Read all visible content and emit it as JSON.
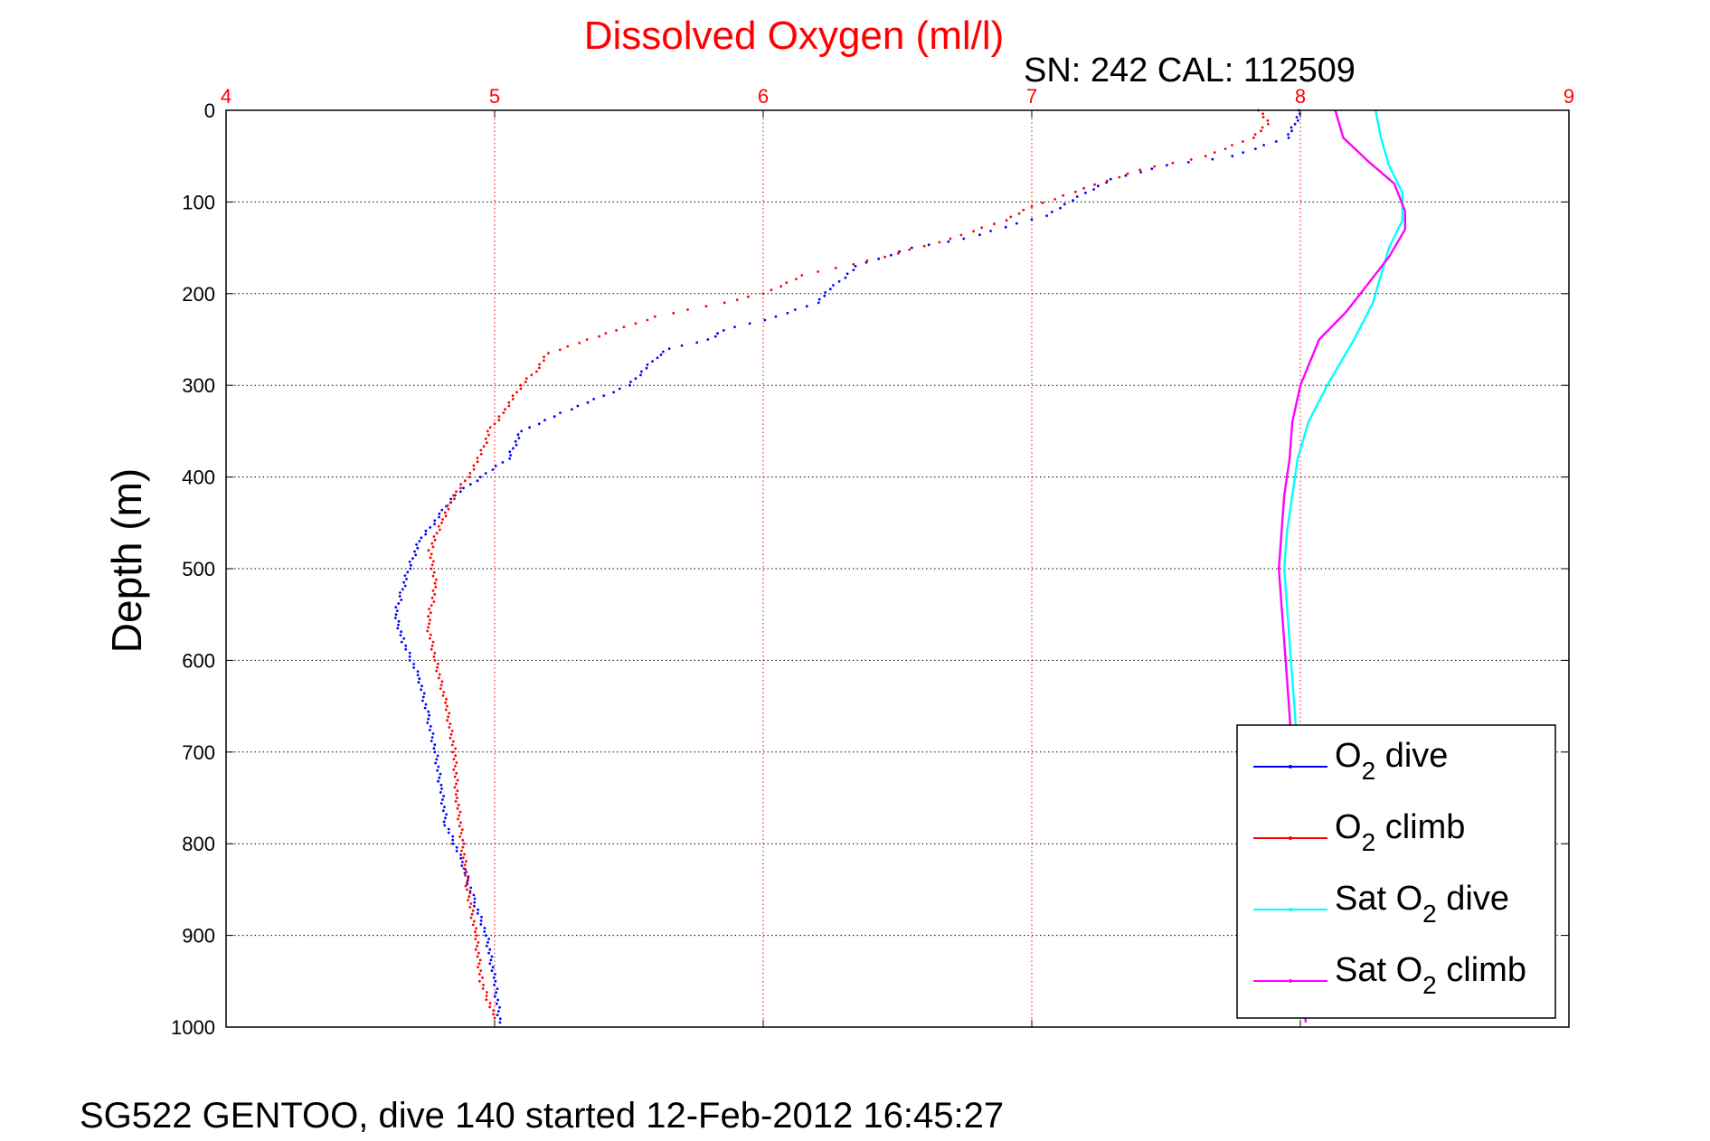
{
  "chart_data": {
    "type": "line",
    "title": "Dissolved Oxygen (ml/l)",
    "subtitle": "SN: 242  CAL: 112509",
    "ylabel": "Depth (m)",
    "xlabel": "",
    "xlim": [
      4,
      9
    ],
    "ylim": [
      0,
      1000
    ],
    "y_reversed": true,
    "x_axis_position": "top",
    "x_ticks": [
      "4",
      "5",
      "6",
      "7",
      "8",
      "9"
    ],
    "y_ticks": [
      "0",
      "100",
      "200",
      "300",
      "400",
      "500",
      "600",
      "700",
      "800",
      "900",
      "1000"
    ],
    "grid": true,
    "legend_position": "bottom-right",
    "colors": {
      "title": "#ff0000",
      "x_ticks": "#ff0000",
      "grid_x": "#ff0000",
      "grid_y": "#000000"
    },
    "series": [
      {
        "legend": {
          "main": "O",
          "sub": "2",
          "rest": " dive"
        },
        "color": "#0000ff",
        "style": "dots",
        "points": [
          [
            8.0,
            0
          ],
          [
            7.98,
            15
          ],
          [
            7.95,
            30
          ],
          [
            7.75,
            50
          ],
          [
            7.5,
            60
          ],
          [
            7.3,
            75
          ],
          [
            7.2,
            90
          ],
          [
            7.05,
            115
          ],
          [
            6.75,
            140
          ],
          [
            6.55,
            150
          ],
          [
            6.35,
            170
          ],
          [
            6.25,
            195
          ],
          [
            6.2,
            210
          ],
          [
            6.05,
            225
          ],
          [
            5.85,
            240
          ],
          [
            5.8,
            250
          ],
          [
            5.65,
            260
          ],
          [
            5.6,
            270
          ],
          [
            5.55,
            285
          ],
          [
            5.5,
            300
          ],
          [
            5.25,
            330
          ],
          [
            5.1,
            350
          ],
          [
            5.05,
            380
          ],
          [
            4.95,
            400
          ],
          [
            4.85,
            420
          ],
          [
            4.8,
            440
          ],
          [
            4.72,
            470
          ],
          [
            4.68,
            500
          ],
          [
            4.65,
            530
          ],
          [
            4.63,
            550
          ],
          [
            4.66,
            580
          ],
          [
            4.72,
            620
          ],
          [
            4.75,
            660
          ],
          [
            4.78,
            700
          ],
          [
            4.8,
            740
          ],
          [
            4.82,
            780
          ],
          [
            4.88,
            820
          ],
          [
            4.92,
            860
          ],
          [
            4.97,
            900
          ],
          [
            5.0,
            950
          ],
          [
            5.02,
            995
          ]
        ]
      },
      {
        "legend": {
          "main": "O",
          "sub": "2",
          "rest": " climb"
        },
        "color": "#ff0000",
        "style": "dots",
        "points": [
          [
            7.85,
            0
          ],
          [
            7.88,
            15
          ],
          [
            7.82,
            30
          ],
          [
            7.65,
            50
          ],
          [
            7.4,
            65
          ],
          [
            7.2,
            85
          ],
          [
            7.0,
            105
          ],
          [
            6.9,
            120
          ],
          [
            6.7,
            140
          ],
          [
            6.45,
            160
          ],
          [
            6.15,
            180
          ],
          [
            6.0,
            200
          ],
          [
            5.85,
            210
          ],
          [
            5.6,
            225
          ],
          [
            5.45,
            240
          ],
          [
            5.35,
            250
          ],
          [
            5.2,
            265
          ],
          [
            5.15,
            285
          ],
          [
            5.1,
            300
          ],
          [
            5.03,
            330
          ],
          [
            4.98,
            350
          ],
          [
            4.95,
            375
          ],
          [
            4.9,
            400
          ],
          [
            4.85,
            420
          ],
          [
            4.8,
            450
          ],
          [
            4.76,
            480
          ],
          [
            4.78,
            520
          ],
          [
            4.75,
            560
          ],
          [
            4.78,
            600
          ],
          [
            4.82,
            650
          ],
          [
            4.85,
            700
          ],
          [
            4.86,
            750
          ],
          [
            4.88,
            800
          ],
          [
            4.9,
            850
          ],
          [
            4.93,
            900
          ],
          [
            4.95,
            950
          ],
          [
            5.0,
            990
          ]
        ]
      },
      {
        "legend": {
          "main": "Sat O",
          "sub": "2",
          "rest": " dive"
        },
        "color": "#00ffff",
        "style": "line",
        "points": [
          [
            8.28,
            0
          ],
          [
            8.3,
            30
          ],
          [
            8.33,
            60
          ],
          [
            8.38,
            90
          ],
          [
            8.38,
            120
          ],
          [
            8.33,
            150
          ],
          [
            8.3,
            180
          ],
          [
            8.27,
            210
          ],
          [
            8.2,
            250
          ],
          [
            8.1,
            300
          ],
          [
            8.03,
            340
          ],
          [
            7.99,
            380
          ],
          [
            7.97,
            420
          ],
          [
            7.95,
            460
          ],
          [
            7.94,
            500
          ],
          [
            7.95,
            540
          ],
          [
            7.96,
            580
          ],
          [
            7.97,
            620
          ],
          [
            7.98,
            660
          ],
          [
            7.99,
            700
          ]
        ]
      },
      {
        "legend": {
          "main": "Sat O",
          "sub": "2",
          "rest": " climb"
        },
        "color": "#ff00ff",
        "style": "line",
        "points": [
          [
            8.13,
            0
          ],
          [
            8.16,
            30
          ],
          [
            8.25,
            55
          ],
          [
            8.35,
            80
          ],
          [
            8.39,
            110
          ],
          [
            8.39,
            130
          ],
          [
            8.33,
            160
          ],
          [
            8.25,
            190
          ],
          [
            8.17,
            220
          ],
          [
            8.07,
            250
          ],
          [
            8.0,
            300
          ],
          [
            7.97,
            340
          ],
          [
            7.96,
            380
          ],
          [
            7.94,
            420
          ],
          [
            7.93,
            460
          ],
          [
            7.92,
            500
          ],
          [
            7.93,
            540
          ],
          [
            7.94,
            580
          ],
          [
            7.95,
            620
          ],
          [
            7.96,
            660
          ],
          [
            7.97,
            700
          ],
          [
            7.98,
            760
          ],
          [
            7.99,
            820
          ],
          [
            8.0,
            880
          ],
          [
            8.01,
            940
          ],
          [
            8.02,
            995
          ]
        ]
      }
    ]
  },
  "footer": "SG522 GENTOO, dive 140 started 12-Feb-2012 16:45:27"
}
